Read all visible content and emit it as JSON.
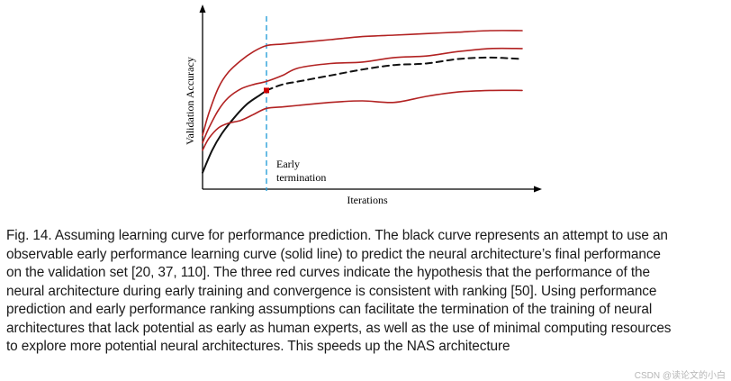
{
  "chart_data": {
    "type": "line",
    "title": "",
    "xlabel": "Iterations",
    "ylabel": "Validation Accuracy",
    "annotation": "Early\ntermination",
    "annotation_lines": [
      "Early",
      "termination"
    ],
    "grid": false,
    "xlim": [
      0,
      100
    ],
    "ylim": [
      0,
      100
    ],
    "termination_x": 20,
    "series": [
      {
        "name": "red-upper",
        "color": "#b22222",
        "style": "solid",
        "x": [
          0,
          2,
          5,
          8,
          12,
          16,
          20,
          25,
          30,
          40,
          50,
          60,
          70,
          80,
          90,
          100
        ],
        "y": [
          30,
          45,
          62,
          72,
          80,
          86,
          90,
          91,
          92,
          94,
          96,
          97,
          98,
          99,
          100,
          100
        ]
      },
      {
        "name": "red-middle",
        "color": "#b22222",
        "style": "solid",
        "x": [
          0,
          2,
          5,
          8,
          12,
          16,
          20,
          25,
          30,
          40,
          50,
          60,
          70,
          80,
          90,
          100
        ],
        "y": [
          25,
          35,
          47,
          55,
          61,
          64,
          66,
          70,
          75,
          78,
          79,
          82,
          83,
          86,
          88,
          88
        ]
      },
      {
        "name": "black-observed",
        "color": "#111111",
        "style": "solid",
        "x": [
          0,
          3,
          6,
          10,
          14,
          18,
          20
        ],
        "y": [
          5,
          20,
          31,
          42,
          51,
          57,
          60
        ]
      },
      {
        "name": "black-predicted",
        "color": "#111111",
        "style": "dashed",
        "x": [
          20,
          25,
          30,
          40,
          50,
          60,
          70,
          80,
          90,
          100
        ],
        "y": [
          60,
          64,
          66,
          70,
          74,
          77,
          78,
          81,
          82,
          81
        ]
      },
      {
        "name": "red-lower",
        "color": "#b22222",
        "style": "solid",
        "x": [
          0,
          2,
          5,
          8,
          12,
          16,
          20,
          25,
          30,
          40,
          50,
          60,
          70,
          80,
          90,
          100
        ],
        "y": [
          20,
          28,
          35,
          38,
          40,
          44,
          48,
          49,
          50,
          52,
          53,
          52,
          56,
          59,
          60,
          60
        ]
      }
    ],
    "marker": {
      "x": 20,
      "y": 60,
      "color": "#cc0000"
    }
  },
  "caption": {
    "lines": [
      "Fig. 14.  Assuming learning curve for performance prediction. The black curve represents an attempt to use an",
      "observable early performance learning curve (solid line) to predict the neural architecture’s final performance",
      "on the validation set [20, 37, 110]. The three red curves indicate the hypothesis that the performance of the",
      "neural architecture during early training and convergence is consistent with ranking [50]. Using performance",
      "prediction and early performance ranking assumptions can facilitate the termination of the training of neural",
      "architectures that lack potential as early as human experts, as well as the use of minimal computing resources",
      "to explore more potential neural architectures. This speeds up the NAS architecture"
    ]
  },
  "watermark": "CSDN @读论文的小白"
}
